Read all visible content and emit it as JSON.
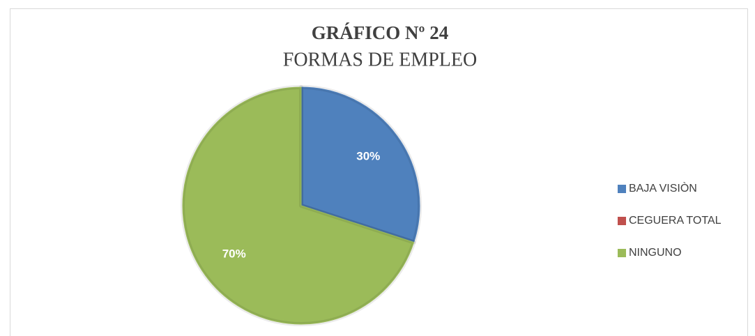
{
  "chart_data": {
    "type": "pie",
    "title": "GRÁFICO Nº 24",
    "subtitle": "FORMAS DE EMPLEO",
    "categories": [
      "BAJA VISIÒN",
      "CEGUERA TOTAL",
      "NINGUNO"
    ],
    "values": [
      30,
      0,
      70
    ],
    "value_labels": [
      "30%",
      null,
      "70%"
    ],
    "colors": [
      "#4f81bd",
      "#c0504d",
      "#9bbb59"
    ],
    "legend": "right"
  }
}
